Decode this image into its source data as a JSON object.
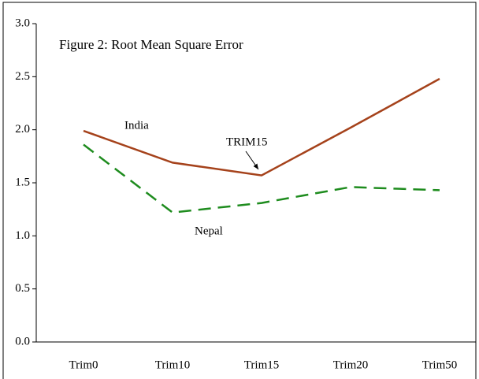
{
  "chart_data": {
    "type": "line",
    "title": "Figure 2: Root Mean Square Error",
    "categories": [
      "Trim0",
      "Trim10",
      "Trim15",
      "Trim20",
      "Trim50"
    ],
    "series": [
      {
        "name": "India",
        "color": "#a5421b",
        "dash": false,
        "values": [
          1.99,
          1.69,
          1.57,
          2.02,
          2.48
        ]
      },
      {
        "name": "Nepal",
        "color": "#1e8c1e",
        "dash": true,
        "values": [
          1.86,
          1.22,
          1.31,
          1.46,
          1.43
        ]
      }
    ],
    "annotation": "TRIM15",
    "ylim": [
      0,
      3
    ],
    "yticks": [
      {
        "value": 0,
        "label": "0.0"
      },
      {
        "value": 0.5,
        "label": "0.5"
      },
      {
        "value": 1,
        "label": "1.0"
      },
      {
        "value": 1.5,
        "label": "1.5"
      },
      {
        "value": 2,
        "label": "2.0"
      },
      {
        "value": 2.5,
        "label": "2.5"
      },
      {
        "value": 3,
        "label": "3.0"
      }
    ],
    "grid": false
  }
}
